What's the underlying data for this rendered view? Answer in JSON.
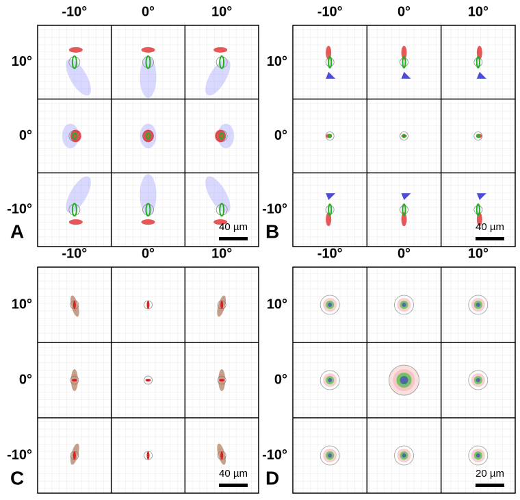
{
  "panels": [
    {
      "letter": "A",
      "col_labels": [
        "-10°",
        "0°",
        "10°"
      ],
      "row_labels": [
        "10°",
        "0°",
        "-10°"
      ],
      "scale_bar": "40 µm"
    },
    {
      "letter": "B",
      "col_labels": [
        "-10°",
        "0°",
        "10°"
      ],
      "row_labels": [
        "10°",
        "0°",
        "-10°"
      ],
      "scale_bar": "40 µm"
    },
    {
      "letter": "C",
      "col_labels": [
        "-10°",
        "0°",
        "10°"
      ],
      "row_labels": [
        "10°",
        "0°",
        "-10°"
      ],
      "scale_bar": "40 µm"
    },
    {
      "letter": "D",
      "col_labels": [
        "-10°",
        "0°",
        "10°"
      ],
      "row_labels": [
        "10°",
        "0°",
        "-10°"
      ],
      "scale_bar": "20 µm"
    }
  ]
}
